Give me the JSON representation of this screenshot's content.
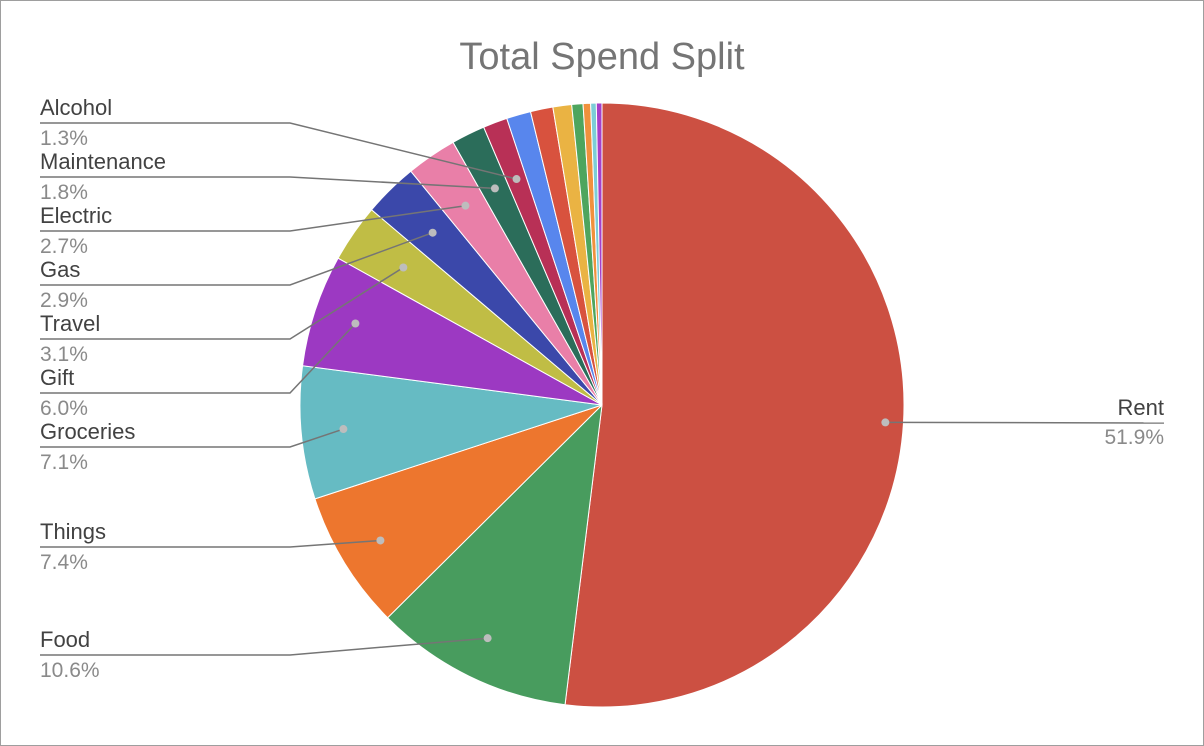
{
  "chart_data": {
    "type": "pie",
    "title": "Total Spend Split",
    "slices": [
      {
        "label": "Rent",
        "percent_label": "51.9%",
        "value": 51.9,
        "color": "#cc5042",
        "labeled": true
      },
      {
        "label": "Food",
        "percent_label": "10.6%",
        "value": 10.6,
        "color": "#489c5e",
        "labeled": true
      },
      {
        "label": "Things",
        "percent_label": "7.4%",
        "value": 7.4,
        "color": "#ed762e",
        "labeled": true
      },
      {
        "label": "Groceries",
        "percent_label": "7.1%",
        "value": 7.1,
        "color": "#66bbc3",
        "labeled": true
      },
      {
        "label": "Gift",
        "percent_label": "6.0%",
        "value": 6.0,
        "color": "#9c39c2",
        "labeled": true
      },
      {
        "label": "Travel",
        "percent_label": "3.1%",
        "value": 3.1,
        "color": "#c0bd45",
        "labeled": true
      },
      {
        "label": "Gas",
        "percent_label": "2.9%",
        "value": 2.9,
        "color": "#3b48aa",
        "labeled": true
      },
      {
        "label": "Electric",
        "percent_label": "2.7%",
        "value": 2.7,
        "color": "#e97fa8",
        "labeled": true
      },
      {
        "label": "Maintenance",
        "percent_label": "1.8%",
        "value": 1.8,
        "color": "#2b6d5a",
        "labeled": true
      },
      {
        "label": "Alcohol",
        "percent_label": "1.3%",
        "value": 1.3,
        "color": "#b83056",
        "labeled": true
      },
      {
        "label": "",
        "percent_label": "",
        "value": 1.3,
        "color": "#5886ed",
        "labeled": false
      },
      {
        "label": "",
        "percent_label": "",
        "value": 1.2,
        "color": "#d8523e",
        "labeled": false
      },
      {
        "label": "",
        "percent_label": "",
        "value": 1.0,
        "color": "#eab343",
        "labeled": false
      },
      {
        "label": "",
        "percent_label": "",
        "value": 0.6,
        "color": "#4ea55e",
        "labeled": false
      },
      {
        "label": "",
        "percent_label": "",
        "value": 0.4,
        "color": "#f0913d",
        "labeled": false
      },
      {
        "label": "",
        "percent_label": "",
        "value": 0.3,
        "color": "#7ccdd7",
        "labeled": false
      },
      {
        "label": "",
        "percent_label": "",
        "value": 0.3,
        "color": "#a63fc8",
        "labeled": false
      }
    ],
    "legend": "none",
    "label_style": "leader-lines"
  }
}
